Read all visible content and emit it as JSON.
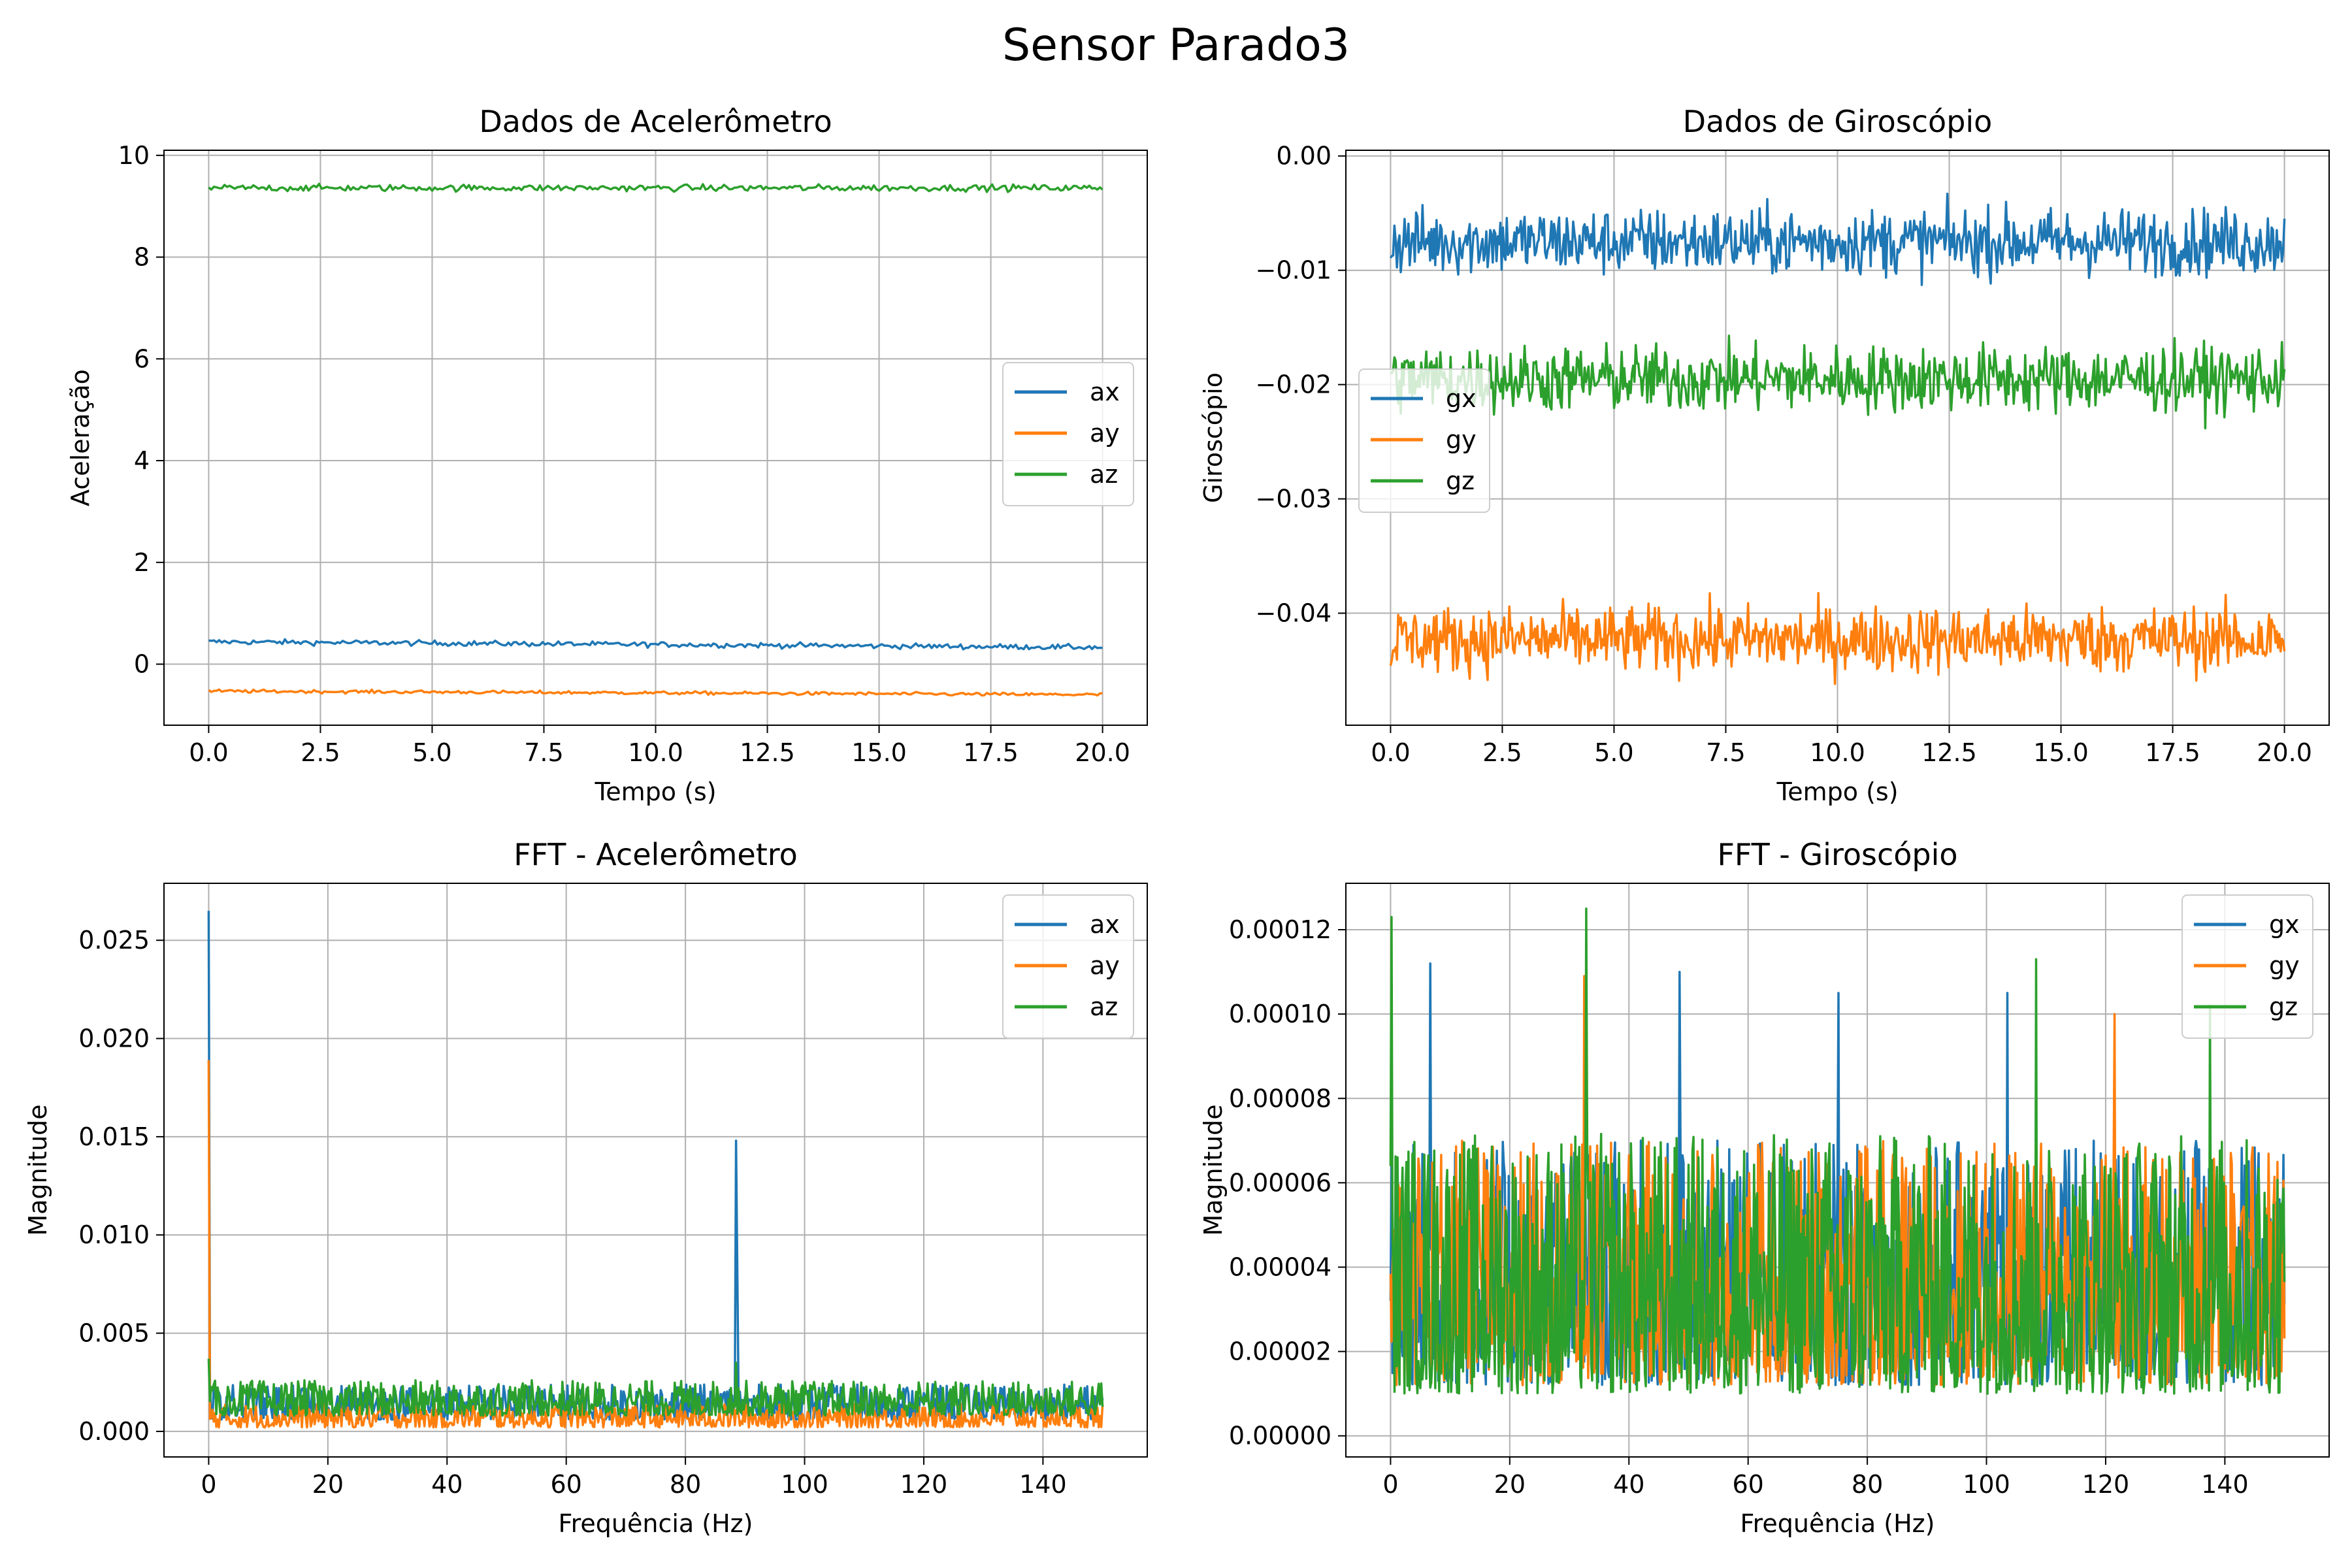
{
  "figure": {
    "suptitle": "Sensor Parado3"
  },
  "colors": {
    "x": "#1f77b4",
    "y": "#ff7f0e",
    "z": "#2ca02c",
    "grid": "#b0b0b0"
  },
  "chart_data": [
    {
      "id": "acc",
      "type": "line",
      "title": "Dados de Acelerômetro",
      "xlabel": "Tempo (s)",
      "ylabel": "Aceleração",
      "xlim": [
        -1.0,
        21.0
      ],
      "ylim": [
        -1.2,
        10.1
      ],
      "xticks": [
        0.0,
        2.5,
        5.0,
        7.5,
        10.0,
        12.5,
        15.0,
        17.5,
        20.0
      ],
      "xticklabels": [
        "0.0",
        "2.5",
        "5.0",
        "7.5",
        "10.0",
        "12.5",
        "15.0",
        "17.5",
        "20.0"
      ],
      "yticks": [
        0,
        2,
        4,
        6,
        8,
        10
      ],
      "yticklabels": [
        "0",
        "2",
        "4",
        "6",
        "8",
        "10"
      ],
      "grid": true,
      "legend": {
        "placement": "center-right"
      },
      "series": [
        {
          "name": "ax",
          "color": "#1f77b4",
          "noise": "band",
          "x_range": [
            0,
            20
          ],
          "start": 0.44,
          "end": 0.33,
          "amp": 0.08,
          "samples": 340
        },
        {
          "name": "ay",
          "color": "#ff7f0e",
          "noise": "band",
          "x_range": [
            0,
            20
          ],
          "start": -0.53,
          "end": -0.6,
          "amp": 0.05,
          "samples": 340
        },
        {
          "name": "az",
          "color": "#2ca02c",
          "noise": "band",
          "x_range": [
            0,
            20
          ],
          "start": 9.36,
          "end": 9.36,
          "amp": 0.1,
          "samples": 340
        }
      ]
    },
    {
      "id": "gyro",
      "type": "line",
      "title": "Dados de Giroscópio",
      "xlabel": "Tempo (s)",
      "ylabel": "Giroscópio",
      "xlim": [
        -1.0,
        21.0
      ],
      "ylim": [
        -0.0498,
        0.0005
      ],
      "xticks": [
        0.0,
        2.5,
        5.0,
        7.5,
        10.0,
        12.5,
        15.0,
        17.5,
        20.0
      ],
      "xticklabels": [
        "0.0",
        "2.5",
        "5.0",
        "7.5",
        "10.0",
        "12.5",
        "15.0",
        "17.5",
        "20.0"
      ],
      "yticks": [
        0.0,
        -0.01,
        -0.02,
        -0.03,
        -0.04
      ],
      "yticklabels": [
        "0.00",
        "−0.01",
        "−0.02",
        "−0.03",
        "−0.04"
      ],
      "grid": true,
      "legend": {
        "placement": "center-left"
      },
      "series": [
        {
          "name": "gx",
          "color": "#1f77b4",
          "noise": "band",
          "x_range": [
            0,
            20
          ],
          "start": -0.0075,
          "end": -0.0075,
          "amp": 0.0045,
          "samples": 700
        },
        {
          "name": "gy",
          "color": "#ff7f0e",
          "noise": "band",
          "x_range": [
            0,
            20
          ],
          "start": -0.0423,
          "end": -0.0423,
          "amp": 0.0045,
          "samples": 700
        },
        {
          "name": "gz",
          "color": "#2ca02c",
          "noise": "band",
          "x_range": [
            0,
            20
          ],
          "start": -0.0195,
          "end": -0.0195,
          "amp": 0.0045,
          "samples": 700
        }
      ]
    },
    {
      "id": "fft_acc",
      "type": "line",
      "title": "FFT - Acelerômetro",
      "xlabel": "Frequência (Hz)",
      "ylabel": "Magnitude",
      "xlim": [
        -7.5,
        157.5
      ],
      "ylim": [
        -0.0013,
        0.0279
      ],
      "xticks": [
        0,
        20,
        40,
        60,
        80,
        100,
        120,
        140
      ],
      "xticklabels": [
        "0",
        "20",
        "40",
        "60",
        "80",
        "100",
        "120",
        "140"
      ],
      "yticks": [
        0.0,
        0.005,
        0.01,
        0.015,
        0.02,
        0.025
      ],
      "yticklabels": [
        "0.000",
        "0.005",
        "0.010",
        "0.015",
        "0.020",
        "0.025"
      ],
      "grid": true,
      "legend": {
        "placement": "top-right"
      },
      "series": [
        {
          "name": "ax",
          "color": "#1f77b4",
          "noise": "floor",
          "x_range": [
            0,
            150
          ],
          "floor": 0.0006,
          "amp": 0.0018,
          "samples": 700,
          "peaks": [
            {
              "x": 0,
              "y": 0.0265
            },
            {
              "x": 88.5,
              "y": 0.0148
            },
            {
              "x": 88.8,
              "y": 0.008
            }
          ]
        },
        {
          "name": "ay",
          "color": "#ff7f0e",
          "noise": "floor",
          "x_range": [
            0,
            150
          ],
          "floor": 0.0002,
          "amp": 0.0012,
          "samples": 700,
          "peaks": [
            {
              "x": 0,
              "y": 0.0189
            }
          ]
        },
        {
          "name": "az",
          "color": "#2ca02c",
          "noise": "floor",
          "x_range": [
            0,
            150
          ],
          "floor": 0.0008,
          "amp": 0.0018,
          "samples": 700,
          "peaks": [
            {
              "x": 0,
              "y": 0.0037
            },
            {
              "x": 88.5,
              "y": 0.0035
            }
          ]
        }
      ]
    },
    {
      "id": "fft_gyro",
      "type": "line",
      "title": "FFT - Giroscópio",
      "xlabel": "Frequência (Hz)",
      "ylabel": "Magnitude",
      "xlim": [
        -7.5,
        157.5
      ],
      "ylim": [
        -5e-06,
        0.000131
      ],
      "xticks": [
        0,
        20,
        40,
        60,
        80,
        100,
        120,
        140
      ],
      "xticklabels": [
        "0",
        "20",
        "40",
        "60",
        "80",
        "100",
        "120",
        "140"
      ],
      "yticks": [
        0.0,
        2e-05,
        4e-05,
        6e-05,
        8e-05,
        0.0001,
        0.00012
      ],
      "yticklabels": [
        "0.00000",
        "0.00002",
        "0.00004",
        "0.00006",
        "0.00008",
        "0.00010",
        "0.00012"
      ],
      "grid": true,
      "legend": {
        "placement": "top-right"
      },
      "series": [
        {
          "name": "gx",
          "color": "#1f77b4",
          "noise": "floor",
          "x_range": [
            0,
            150
          ],
          "floor": 1.2e-05,
          "amp": 5.8e-05,
          "samples": 900,
          "peaks": [
            {
              "x": 6.7,
              "y": 0.000112
            },
            {
              "x": 48.5,
              "y": 0.00011
            },
            {
              "x": 75.1,
              "y": 0.000105
            },
            {
              "x": 103.5,
              "y": 0.000105
            }
          ]
        },
        {
          "name": "gy",
          "color": "#ff7f0e",
          "noise": "floor",
          "x_range": [
            0,
            150
          ],
          "floor": 1.2e-05,
          "amp": 5.8e-05,
          "samples": 900,
          "peaks": [
            {
              "x": 32.5,
              "y": 0.000109
            },
            {
              "x": 121.5,
              "y": 0.0001
            }
          ]
        },
        {
          "name": "gz",
          "color": "#2ca02c",
          "noise": "floor",
          "x_range": [
            0,
            150
          ],
          "floor": 1e-05,
          "amp": 6.2e-05,
          "samples": 900,
          "peaks": [
            {
              "x": 0.2,
              "y": 0.000123
            },
            {
              "x": 32.8,
              "y": 0.000125
            },
            {
              "x": 108.3,
              "y": 0.000113
            },
            {
              "x": 137.5,
              "y": 0.000102
            }
          ]
        }
      ]
    }
  ]
}
